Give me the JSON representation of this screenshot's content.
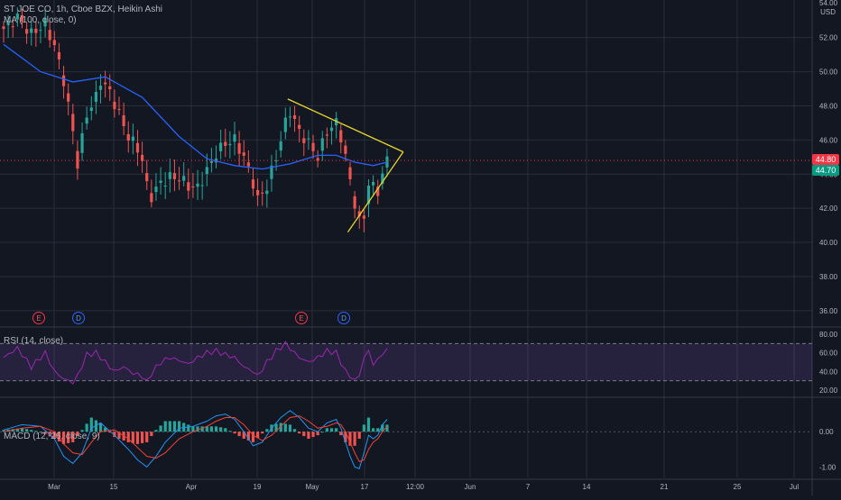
{
  "legend": {
    "main": "ST JOE CO, 1h, Cboe BZX, Heikin Ashi",
    "ma": "MA (100, close, 0)",
    "rsi": "RSI (14, close)",
    "macd": "MACD (12, 26, close, 9)"
  },
  "price_axis": {
    "currency": "USD",
    "top_label": "54.00",
    "last_price": "44.80",
    "ma_value": "44.70"
  },
  "events": [
    {
      "type": "E",
      "period": "early-Mar"
    },
    {
      "type": "D",
      "period": "early-Mar"
    },
    {
      "type": "E",
      "period": "late-Apr"
    },
    {
      "type": "D",
      "period": "early-May"
    }
  ],
  "colors": {
    "background": "#131722",
    "grid": "#2a2e39",
    "up": "#26a69a",
    "down": "#ef5350",
    "ma_line": "#2962ff",
    "trendline": "#e5d62b",
    "rsi_line": "#9c27b0",
    "rsi_band": "#7e57c2",
    "macd_line": "#2196f3",
    "signal_line": "#f44336",
    "hist_up": "#26a69a",
    "hist_down": "#ef5350",
    "last_price_tag": "#f23645",
    "ma_tag": "#089981"
  },
  "chart_data": [
    {
      "type": "candlestick",
      "title": "ST JOE CO, 1h, Cboe BZX, Heikin Ashi",
      "ylim": [
        35.2,
        54.2
      ],
      "y_ticks": [
        "36.00",
        "38.00",
        "40.00",
        "42.00",
        "44.00",
        "46.00",
        "48.00",
        "50.00",
        "52.00"
      ],
      "x_ticks": [
        "Mar",
        "15",
        "Apr",
        "19",
        "May",
        "17",
        "12:00",
        "Jun",
        "7",
        "14",
        "21",
        "25",
        "Jul"
      ],
      "series_close_path": [
        [
          0,
          52.5
        ],
        [
          3,
          53.2
        ],
        [
          6,
          52.2
        ],
        [
          9,
          52.8
        ],
        [
          11,
          51.5
        ],
        [
          13,
          49.5
        ],
        [
          15,
          46.5
        ],
        [
          16,
          44.6
        ],
        [
          18,
          47.5
        ],
        [
          20,
          48.5
        ],
        [
          21,
          49.5
        ],
        [
          23,
          48.8
        ],
        [
          25,
          47.5
        ],
        [
          27,
          46.2
        ],
        [
          29,
          45.5
        ],
        [
          30,
          44.8
        ],
        [
          31,
          43.3
        ],
        [
          32,
          42.7
        ],
        [
          34,
          43.5
        ],
        [
          36,
          43.8
        ],
        [
          38,
          43.8
        ],
        [
          40,
          43.3
        ],
        [
          42,
          43.2
        ],
        [
          44,
          44.2
        ],
        [
          46,
          45.2
        ],
        [
          48,
          45.8
        ],
        [
          50,
          46.0
        ],
        [
          52,
          45.0
        ],
        [
          54,
          43.5
        ],
        [
          55,
          42.5
        ],
        [
          57,
          43.3
        ],
        [
          59,
          45.0
        ],
        [
          61,
          47.0
        ],
        [
          62,
          47.7
        ],
        [
          64,
          46.5
        ],
        [
          66,
          45.8
        ],
        [
          68,
          45.0
        ],
        [
          70,
          46.5
        ],
        [
          72,
          47.0
        ],
        [
          73,
          46.2
        ],
        [
          74,
          45.0
        ],
        [
          75,
          43.6
        ],
        [
          76,
          42.3
        ],
        [
          77,
          41.2
        ],
        [
          78,
          41.5
        ],
        [
          79,
          43.5
        ],
        [
          80,
          43.2
        ],
        [
          81,
          43.0
        ],
        [
          82,
          44.0
        ],
        [
          83,
          44.8
        ]
      ],
      "ma_100": {
        "name": "MA (100, close, 0)",
        "points": [
          [
            0,
            51.6
          ],
          [
            8,
            50.0
          ],
          [
            15,
            49.4
          ],
          [
            22,
            49.7
          ],
          [
            30,
            48.5
          ],
          [
            38,
            46.2
          ],
          [
            44,
            44.9
          ],
          [
            50,
            44.5
          ],
          [
            56,
            44.3
          ],
          [
            62,
            44.6
          ],
          [
            68,
            45.1
          ],
          [
            72,
            45.1
          ],
          [
            76,
            44.7
          ],
          [
            80,
            44.5
          ],
          [
            83,
            44.7
          ]
        ]
      },
      "trendlines": [
        {
          "from": [
            61.5,
            48.4
          ],
          "to": [
            86.5,
            45.3
          ]
        },
        {
          "from": [
            74.5,
            40.6
          ],
          "to": [
            86.5,
            45.3
          ]
        }
      ]
    },
    {
      "type": "line",
      "title": "RSI (14, close)",
      "ylim": [
        15,
        85
      ],
      "y_ticks": [
        "80.00",
        "60.00",
        "40.00",
        "20.00"
      ],
      "upper_band": 70,
      "lower_band": 30,
      "path": [
        [
          0,
          55
        ],
        [
          3,
          65
        ],
        [
          6,
          45
        ],
        [
          9,
          60
        ],
        [
          11,
          40
        ],
        [
          13,
          32
        ],
        [
          15,
          28
        ],
        [
          16,
          35
        ],
        [
          18,
          58
        ],
        [
          20,
          60
        ],
        [
          22,
          50
        ],
        [
          24,
          40
        ],
        [
          26,
          45
        ],
        [
          28,
          38
        ],
        [
          30,
          35
        ],
        [
          31,
          28
        ],
        [
          32,
          38
        ],
        [
          34,
          50
        ],
        [
          36,
          55
        ],
        [
          38,
          52
        ],
        [
          40,
          48
        ],
        [
          42,
          55
        ],
        [
          44,
          60
        ],
        [
          46,
          62
        ],
        [
          48,
          58
        ],
        [
          50,
          55
        ],
        [
          52,
          45
        ],
        [
          54,
          40
        ],
        [
          55,
          35
        ],
        [
          57,
          50
        ],
        [
          59,
          62
        ],
        [
          61,
          70
        ],
        [
          62,
          65
        ],
        [
          64,
          55
        ],
        [
          66,
          50
        ],
        [
          68,
          55
        ],
        [
          70,
          62
        ],
        [
          72,
          60
        ],
        [
          73,
          50
        ],
        [
          74,
          40
        ],
        [
          75,
          35
        ],
        [
          76,
          30
        ],
        [
          77,
          36
        ],
        [
          78,
          55
        ],
        [
          79,
          62
        ],
        [
          80,
          48
        ],
        [
          81,
          52
        ],
        [
          82,
          60
        ],
        [
          83,
          62
        ]
      ]
    },
    {
      "type": "bar+line",
      "title": "MACD (12, 26, close, 9)",
      "ylim": [
        -1.3,
        0.9
      ],
      "y_ticks": [
        "0.00",
        "-1.00"
      ],
      "macd": [
        [
          0,
          0.05
        ],
        [
          4,
          0.2
        ],
        [
          8,
          0.15
        ],
        [
          11,
          -0.2
        ],
        [
          13,
          -0.7
        ],
        [
          15,
          -0.9
        ],
        [
          17,
          -0.6
        ],
        [
          19,
          0.1
        ],
        [
          21,
          0.25
        ],
        [
          24,
          -0.1
        ],
        [
          27,
          -0.5
        ],
        [
          29,
          -0.8
        ],
        [
          31,
          -1.0
        ],
        [
          33,
          -0.7
        ],
        [
          35,
          -0.3
        ],
        [
          38,
          0.1
        ],
        [
          41,
          0.15
        ],
        [
          44,
          0.3
        ],
        [
          46,
          0.45
        ],
        [
          48,
          0.5
        ],
        [
          50,
          0.35
        ],
        [
          52,
          0.0
        ],
        [
          54,
          -0.4
        ],
        [
          56,
          -0.3
        ],
        [
          58,
          0.1
        ],
        [
          60,
          0.4
        ],
        [
          62,
          0.6
        ],
        [
          64,
          0.4
        ],
        [
          66,
          0.1
        ],
        [
          68,
          0.0
        ],
        [
          70,
          0.25
        ],
        [
          72,
          0.35
        ],
        [
          73,
          0.1
        ],
        [
          74,
          -0.3
        ],
        [
          75,
          -0.7
        ],
        [
          76,
          -1.0
        ],
        [
          77,
          -1.05
        ],
        [
          78,
          -0.6
        ],
        [
          79,
          -0.1
        ],
        [
          80,
          -0.2
        ],
        [
          81,
          -0.1
        ],
        [
          82,
          0.2
        ],
        [
          83,
          0.35
        ]
      ],
      "signal": [
        [
          0,
          0.0
        ],
        [
          4,
          0.1
        ],
        [
          8,
          0.15
        ],
        [
          11,
          0.0
        ],
        [
          13,
          -0.35
        ],
        [
          15,
          -0.6
        ],
        [
          17,
          -0.65
        ],
        [
          19,
          -0.3
        ],
        [
          21,
          0.0
        ],
        [
          24,
          0.05
        ],
        [
          27,
          -0.2
        ],
        [
          29,
          -0.45
        ],
        [
          31,
          -0.7
        ],
        [
          33,
          -0.75
        ],
        [
          35,
          -0.6
        ],
        [
          38,
          -0.2
        ],
        [
          41,
          0.0
        ],
        [
          44,
          0.15
        ],
        [
          46,
          0.3
        ],
        [
          48,
          0.4
        ],
        [
          50,
          0.4
        ],
        [
          52,
          0.2
        ],
        [
          54,
          -0.1
        ],
        [
          56,
          -0.25
        ],
        [
          58,
          -0.1
        ],
        [
          60,
          0.15
        ],
        [
          62,
          0.4
        ],
        [
          64,
          0.45
        ],
        [
          66,
          0.3
        ],
        [
          68,
          0.1
        ],
        [
          70,
          0.15
        ],
        [
          72,
          0.25
        ],
        [
          73,
          0.2
        ],
        [
          74,
          0.0
        ],
        [
          75,
          -0.3
        ],
        [
          76,
          -0.6
        ],
        [
          77,
          -0.85
        ],
        [
          78,
          -0.8
        ],
        [
          79,
          -0.5
        ],
        [
          80,
          -0.3
        ],
        [
          81,
          -0.2
        ],
        [
          82,
          0.0
        ],
        [
          83,
          0.15
        ]
      ]
    }
  ]
}
